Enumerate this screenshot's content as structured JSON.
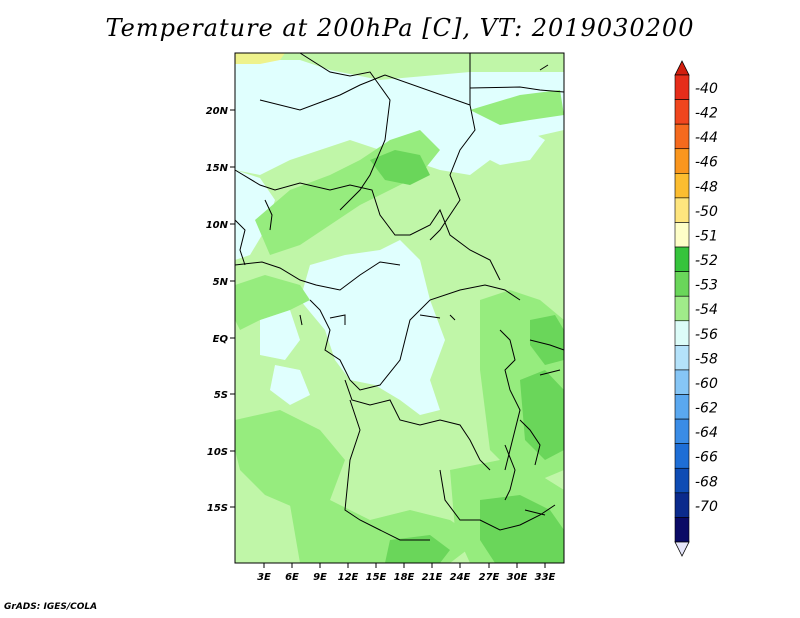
{
  "title": "Temperature at 200hPa [C], VT: 2019030200",
  "credit": "GrADS: IGES/COLA",
  "map": {
    "lat_labels": [
      "20N",
      "15N",
      "10N",
      "5N",
      "EQ",
      "5S",
      "10S",
      "15S"
    ],
    "lon_labels": [
      "3E",
      "6E",
      "9E",
      "12E",
      "15E",
      "18E",
      "21E",
      "24E",
      "27E",
      "30E",
      "33E"
    ],
    "colors": {
      "very_light_cyan": "#e0fffe",
      "light_green": "#c0f6a8",
      "mid_green": "#96ec7e",
      "green": "#50c850",
      "yellow_green": "#eef28c",
      "borders": "#000000"
    }
  },
  "colorbar": {
    "labels": [
      "-40",
      "-42",
      "-44",
      "-46",
      "-48",
      "-50",
      "-51",
      "-52",
      "-53",
      "-54",
      "-56",
      "-58",
      "-60",
      "-62",
      "-64",
      "-66",
      "-68",
      "-70"
    ],
    "colors": [
      "#e62d1a",
      "#f0461e",
      "#f56a1e",
      "#fa961e",
      "#fcbd30",
      "#fee57e",
      "#fefec8",
      "#36c43c",
      "#6ad65a",
      "#a0ec8a",
      "#dcfcf8",
      "#b4e2fa",
      "#86c6f6",
      "#5aa8f0",
      "#3a8ce6",
      "#1e6ed6",
      "#0e4cb4",
      "#0a2a8c",
      "#0a0a66"
    ],
    "arrow_top": "#d21e0e",
    "arrow_bottom": "#e6e6fa"
  }
}
